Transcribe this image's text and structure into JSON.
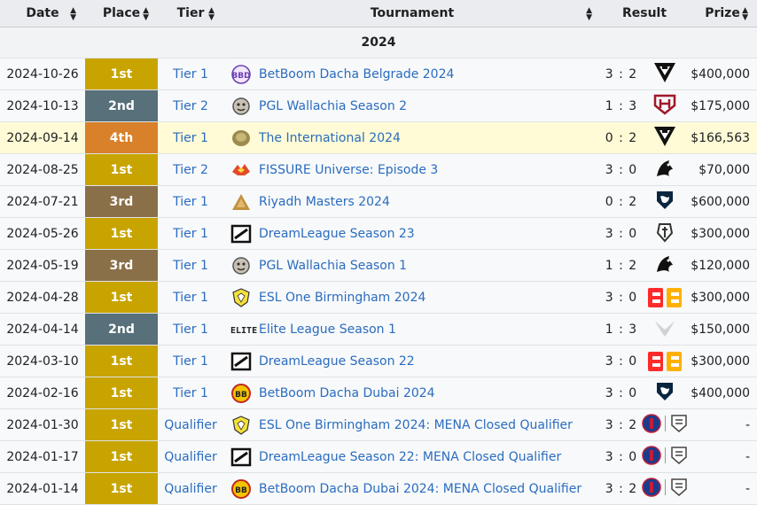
{
  "headers": {
    "date": "Date",
    "place": "Place",
    "tier": "Tier",
    "tournament": "Tournament",
    "result": "Result",
    "prize": "Prize"
  },
  "year": "2024",
  "colors": {
    "1st": "#c8a400",
    "2nd": "#57707a",
    "3rd": "#8a7049",
    "4th": "#d8802a"
  },
  "rows": [
    {
      "date": "2024-10-26",
      "place": "1st",
      "tier": "Tier 1",
      "icon": "bbd-icon",
      "tournament": "BetBoom Dacha Belgrade 2024",
      "score": "3 : 2",
      "opponent": "tundra-icon",
      "prize": "$400,000"
    },
    {
      "date": "2024-10-13",
      "place": "2nd",
      "tier": "Tier 2",
      "icon": "pgl-icon",
      "tournament": "PGL Wallachia Season 2",
      "score": "1 : 3",
      "opponent": "heroic-icon",
      "prize": "$175,000"
    },
    {
      "date": "2024-09-14",
      "place": "4th",
      "tier": "Tier 1",
      "icon": "aegis-icon",
      "tournament": "The International 2024",
      "score": "0 : 2",
      "opponent": "tundra-icon",
      "prize": "$166,563"
    },
    {
      "date": "2024-08-25",
      "place": "1st",
      "tier": "Tier 2",
      "icon": "fissure-icon",
      "tournament": "FISSURE Universe: Episode 3",
      "score": "3 : 0",
      "opponent": "team-spirit-icon",
      "prize": "$70,000"
    },
    {
      "date": "2024-07-21",
      "place": "3rd",
      "tier": "Tier 1",
      "icon": "riyadh-icon",
      "tournament": "Riyadh Masters 2024",
      "score": "0 : 2",
      "opponent": "team-liquid-icon",
      "prize": "$600,000"
    },
    {
      "date": "2024-05-26",
      "place": "1st",
      "tier": "Tier 1",
      "icon": "dreamleague-icon",
      "tournament": "DreamLeague Season 23",
      "score": "3 : 0",
      "opponent": "gaimin-icon",
      "prize": "$300,000"
    },
    {
      "date": "2024-05-19",
      "place": "3rd",
      "tier": "Tier 1",
      "icon": "pgl-icon",
      "tournament": "PGL Wallachia Season 1",
      "score": "1 : 2",
      "opponent": "team-spirit-icon",
      "prize": "$120,000"
    },
    {
      "date": "2024-04-28",
      "place": "1st",
      "tier": "Tier 1",
      "icon": "esl-icon",
      "tournament": "ESL One Birmingham 2024",
      "score": "3 : 0",
      "opponent": "betboom-icon",
      "prize": "$300,000"
    },
    {
      "date": "2024-04-14",
      "place": "2nd",
      "tier": "Tier 1",
      "icon": "elite-icon",
      "tournament": "Elite League Season 1",
      "score": "1 : 3",
      "opponent": "falcons-icon",
      "prize": "$150,000"
    },
    {
      "date": "2024-03-10",
      "place": "1st",
      "tier": "Tier 1",
      "icon": "dreamleague-icon",
      "tournament": "DreamLeague Season 22",
      "score": "3 : 0",
      "opponent": "betboom-icon",
      "prize": "$300,000"
    },
    {
      "date": "2024-02-16",
      "place": "1st",
      "tier": "Tier 1",
      "icon": "bbd-dubai-icon",
      "tournament": "BetBoom Dacha Dubai 2024",
      "score": "3 : 0",
      "opponent": "team-liquid-icon",
      "prize": "$400,000"
    },
    {
      "date": "2024-01-30",
      "place": "1st",
      "tier": "Qualifier",
      "icon": "esl-icon",
      "tournament": "ESL One Birmingham 2024: MENA Closed Qualifier",
      "score": "3 : 2",
      "opponent": "psg-quest-icon",
      "prize": "-"
    },
    {
      "date": "2024-01-17",
      "place": "1st",
      "tier": "Qualifier",
      "icon": "dreamleague-icon",
      "tournament": "DreamLeague Season 22: MENA Closed Qualifier",
      "score": "3 : 0",
      "opponent": "psg-quest-icon",
      "prize": "-"
    },
    {
      "date": "2024-01-14",
      "place": "1st",
      "tier": "Qualifier",
      "icon": "bbd-dubai-icon",
      "tournament": "BetBoom Dacha Dubai 2024: MENA Closed Qualifier",
      "score": "3 : 2",
      "opponent": "psg-quest-icon",
      "prize": "-"
    }
  ]
}
